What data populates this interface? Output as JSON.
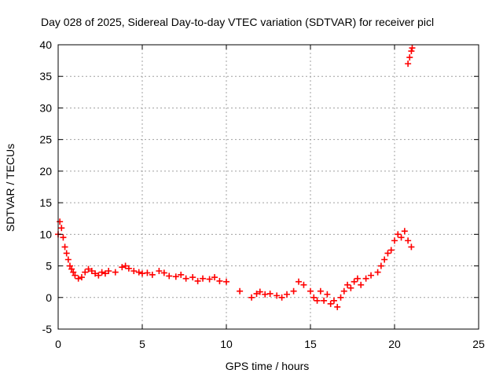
{
  "chart_data": {
    "type": "scatter",
    "title": "Day 028 of 2025, Sidereal Day-to-day VTEC variation (SDTVAR) for receiver picl",
    "xlabel": "GPS time / hours",
    "ylabel": "SDTVAR / TECUs",
    "xlim": [
      0,
      25
    ],
    "ylim": [
      -5,
      40
    ],
    "grid": true,
    "x_ticks": [
      0,
      5,
      10,
      15,
      20,
      25
    ],
    "y_ticks": [
      -5,
      0,
      5,
      10,
      15,
      20,
      25,
      30,
      35,
      40
    ],
    "x_tick_labels": [
      "0",
      "5",
      "10",
      "15",
      "20",
      "25"
    ],
    "y_tick_labels": [
      "-5",
      "0",
      "5",
      "10",
      "15",
      "20",
      "25",
      "30",
      "35",
      "40"
    ],
    "marker": "plus",
    "series": [
      {
        "name": "SDTVAR",
        "color": "#ff0000",
        "x": [
          0.0,
          0.1,
          0.2,
          0.3,
          0.4,
          0.5,
          0.6,
          0.7,
          0.8,
          0.9,
          1.0,
          1.2,
          1.4,
          1.6,
          1.8,
          2.0,
          2.2,
          2.4,
          2.6,
          2.8,
          3.0,
          3.4,
          3.8,
          4.0,
          4.2,
          4.5,
          4.8,
          5.0,
          5.3,
          5.6,
          6.0,
          6.3,
          6.6,
          7.0,
          7.3,
          7.6,
          8.0,
          8.3,
          8.6,
          9.0,
          9.3,
          9.6,
          10.0,
          10.8,
          11.5,
          11.8,
          12.0,
          12.3,
          12.6,
          13.0,
          13.3,
          13.6,
          14.0,
          14.3,
          14.6,
          15.0,
          15.2,
          15.4,
          15.6,
          15.8,
          16.0,
          16.2,
          16.4,
          16.6,
          16.8,
          17.0,
          17.2,
          17.4,
          17.6,
          17.8,
          18.0,
          18.3,
          18.6,
          19.0,
          19.2,
          19.4,
          19.6,
          19.8,
          20.0,
          20.2,
          20.4,
          20.6,
          20.8,
          21.0,
          20.8,
          20.9,
          21.0,
          21.05
        ],
        "y": [
          10.0,
          12.0,
          11.0,
          9.5,
          8.0,
          7.0,
          6.0,
          5.0,
          4.5,
          4.0,
          3.5,
          3.0,
          3.2,
          4.0,
          4.5,
          4.2,
          3.8,
          3.5,
          4.0,
          3.8,
          4.2,
          4.0,
          4.8,
          5.0,
          4.6,
          4.2,
          4.0,
          3.8,
          3.9,
          3.6,
          4.2,
          3.9,
          3.4,
          3.3,
          3.6,
          3.0,
          3.2,
          2.6,
          3.0,
          2.9,
          3.2,
          2.6,
          2.5,
          1.0,
          0.0,
          0.6,
          0.9,
          0.5,
          0.6,
          0.3,
          0.0,
          0.5,
          1.0,
          2.5,
          2.0,
          1.0,
          0.0,
          -0.5,
          1.0,
          -0.5,
          0.5,
          -1.0,
          -0.5,
          -1.5,
          0.0,
          1.0,
          2.0,
          1.5,
          2.5,
          3.0,
          2.0,
          3.0,
          3.5,
          4.0,
          5.0,
          6.0,
          7.0,
          7.5,
          9.0,
          10.0,
          9.5,
          10.5,
          9.0,
          8.0,
          37.0,
          38.0,
          39.0,
          39.5
        ]
      }
    ]
  }
}
